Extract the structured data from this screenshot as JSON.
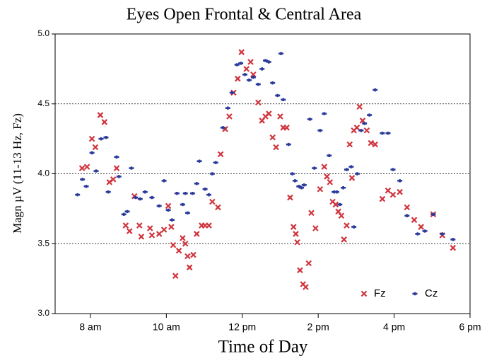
{
  "chart_data": {
    "type": "scatter",
    "title": "Eyes Open Frontal & Central Area",
    "x_label": "Time of Day",
    "y_label": "Magn µV (11-13 Hz,   Fz)",
    "xlim": [
      7.07,
      18
    ],
    "xticks": [
      {
        "value": 8,
        "label": "8 am"
      },
      {
        "value": 10,
        "label": "10 am"
      },
      {
        "value": 12,
        "label": "12 pm"
      },
      {
        "value": 14,
        "label": "2 pm"
      },
      {
        "value": 16,
        "label": "4 pm"
      },
      {
        "value": 18,
        "label": "6 pm"
      }
    ],
    "ylim": [
      3,
      5
    ],
    "yticks": [
      {
        "value": 3,
        "label": "3.0"
      },
      3.5,
      {
        "value": 4,
        "label": "4.0"
      },
      4.5,
      {
        "value": 5,
        "label": "5.0"
      }
    ],
    "grid": true,
    "legend": "lower right",
    "series": [
      {
        "name": "Fz",
        "color": "#d0343c",
        "marker": "x",
        "x": [
          7.78,
          7.91,
          8.04,
          8.13,
          8.26,
          8.37,
          8.5,
          8.6,
          8.69,
          8.93,
          9.03,
          9.16,
          9.29,
          9.34,
          9.57,
          9.62,
          9.81,
          9.94,
          10.05,
          10.13,
          10.18,
          10.24,
          10.33,
          10.43,
          10.5,
          10.56,
          10.61,
          10.71,
          10.8,
          10.93,
          11.02,
          11.12,
          11.21,
          11.36,
          11.43,
          11.55,
          11.66,
          11.77,
          11.88,
          11.98,
          12.11,
          12.22,
          12.29,
          12.42,
          12.52,
          12.61,
          12.7,
          12.8,
          12.89,
          13.0,
          13.08,
          13.17,
          13.26,
          13.35,
          13.41,
          13.45,
          13.52,
          13.6,
          13.67,
          13.75,
          13.82,
          13.93,
          14.05,
          14.16,
          14.23,
          14.31,
          14.38,
          14.46,
          14.53,
          14.61,
          14.68,
          14.75,
          14.83,
          14.89,
          14.94,
          15.02,
          15.09,
          15.17,
          15.28,
          15.39,
          15.5,
          15.69,
          15.84,
          15.97,
          16.15,
          16.34,
          16.53,
          16.71,
          17.03,
          17.27,
          17.55
        ],
        "values": [
          4.04,
          4.05,
          4.25,
          4.19,
          4.42,
          4.37,
          3.94,
          3.96,
          4.04,
          3.63,
          3.59,
          3.84,
          3.63,
          3.55,
          3.61,
          3.56,
          3.57,
          3.6,
          3.77,
          3.62,
          3.49,
          3.27,
          3.45,
          3.54,
          3.5,
          3.41,
          3.33,
          3.42,
          3.57,
          3.63,
          3.63,
          3.63,
          3.8,
          3.76,
          4.14,
          4.32,
          4.41,
          4.58,
          4.68,
          4.87,
          4.75,
          4.8,
          4.71,
          4.51,
          4.38,
          4.41,
          4.43,
          4.26,
          4.19,
          4.41,
          4.33,
          4.33,
          3.83,
          3.62,
          3.57,
          3.51,
          3.31,
          3.21,
          3.19,
          3.36,
          3.72,
          3.61,
          3.89,
          4.05,
          3.98,
          3.94,
          3.8,
          3.78,
          3.73,
          3.7,
          3.53,
          3.63,
          4.21,
          3.97,
          4.31,
          4.33,
          4.48,
          4.38,
          4.31,
          4.22,
          4.21,
          3.82,
          3.88,
          3.85,
          3.87,
          3.76,
          3.67,
          3.62,
          3.71,
          3.56,
          3.47
        ]
      },
      {
        "name": "Cz",
        "color": "#2a3a9a",
        "marker": "plus",
        "x": [
          7.66,
          7.79,
          7.89,
          8.04,
          8.15,
          8.28,
          8.41,
          8.47,
          8.69,
          8.75,
          8.88,
          8.97,
          9.08,
          9.19,
          9.31,
          9.44,
          9.62,
          9.81,
          9.94,
          10.05,
          10.15,
          10.28,
          10.43,
          10.5,
          10.56,
          10.69,
          10.8,
          10.87,
          11.02,
          11.12,
          11.21,
          11.3,
          11.49,
          11.62,
          11.73,
          11.86,
          11.96,
          12.07,
          12.18,
          12.29,
          12.42,
          12.52,
          12.61,
          12.7,
          12.8,
          12.93,
          13.02,
          13.08,
          13.22,
          13.32,
          13.39,
          13.49,
          13.56,
          13.63,
          13.78,
          13.9,
          14.05,
          14.16,
          14.29,
          14.42,
          14.49,
          14.57,
          14.66,
          14.75,
          14.87,
          14.94,
          15.03,
          15.13,
          15.22,
          15.35,
          15.5,
          15.69,
          15.84,
          15.97,
          16.15,
          16.34,
          16.62,
          16.81,
          17.03,
          17.27,
          17.55
        ],
        "values": [
          3.85,
          3.96,
          3.91,
          4.15,
          4.02,
          4.25,
          4.26,
          3.87,
          4.12,
          3.98,
          3.71,
          3.73,
          4.04,
          3.83,
          3.82,
          3.87,
          3.83,
          3.77,
          3.95,
          3.74,
          3.67,
          3.86,
          3.78,
          3.86,
          3.72,
          3.86,
          3.93,
          4.09,
          3.89,
          3.85,
          4.0,
          4.08,
          4.33,
          4.47,
          4.58,
          4.78,
          4.79,
          4.71,
          4.67,
          4.69,
          4.64,
          4.75,
          4.81,
          4.8,
          4.65,
          4.56,
          4.86,
          4.53,
          4.21,
          4.0,
          3.95,
          3.91,
          3.9,
          3.92,
          4.39,
          4.04,
          4.31,
          4.43,
          4.13,
          3.87,
          3.87,
          3.78,
          3.9,
          4.03,
          4.05,
          3.62,
          4.0,
          4.31,
          4.36,
          4.42,
          4.6,
          4.29,
          4.29,
          4.03,
          3.95,
          3.7,
          3.57,
          3.59,
          3.71,
          3.57,
          3.53
        ]
      }
    ]
  }
}
